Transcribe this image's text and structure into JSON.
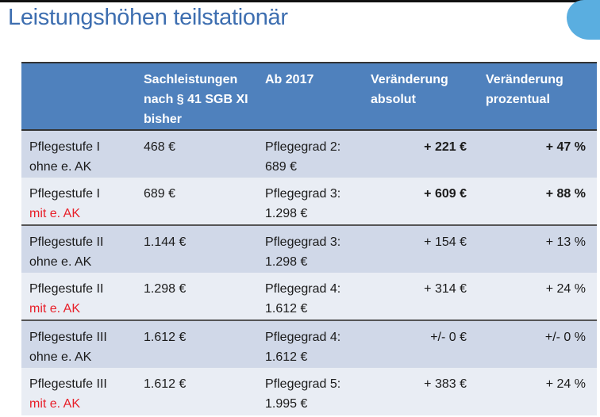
{
  "title": "Leistungshöhen teilstationär",
  "colors": {
    "header_bg": "#4f81bd",
    "title": "#3d6eb0",
    "highlight": "#e8202a"
  },
  "table": {
    "headers": [
      "",
      "Sachleistungen nach § 41 SGB XI bisher",
      "Ab 2017",
      "Veränderung absolut",
      "Veränderung prozentual"
    ],
    "rows": [
      {
        "stufe": "Pflegestufe I",
        "ak": "ohne e. AK",
        "ak_red": false,
        "bisher": "468 €",
        "grad": "Pflegegrad 2:",
        "neu": "689 €",
        "abs": "+ 221 €",
        "pct": "+ 47 %",
        "bold": true
      },
      {
        "stufe": "Pflegestufe I",
        "ak": "mit e. AK",
        "ak_red": true,
        "bisher": "689 €",
        "grad": "Pflegegrad 3:",
        "neu": "1.298 €",
        "abs": "+ 609 €",
        "pct": "+ 88 %",
        "bold": true
      },
      {
        "stufe": "Pflegestufe II",
        "ak": "ohne e. AK",
        "ak_red": false,
        "bisher": "1.144 €",
        "grad": "Pflegegrad 3:",
        "neu": "1.298 €",
        "abs": "+ 154 €",
        "pct": "+ 13 %",
        "bold": false
      },
      {
        "stufe": "Pflegestufe II",
        "ak": "mit e. AK",
        "ak_red": true,
        "bisher": "1.298 €",
        "grad": "Pflegegrad 4:",
        "neu": "1.612 €",
        "abs": "+ 314 €",
        "pct": "+ 24 %",
        "bold": false
      },
      {
        "stufe": "Pflegestufe III",
        "ak": "ohne e. AK",
        "ak_red": false,
        "bisher": "1.612 €",
        "grad": "Pflegegrad 4:",
        "neu": "1.612 €",
        "abs": "+/- 0 €",
        "pct": "+/- 0 %",
        "bold": false
      },
      {
        "stufe": "Pflegestufe III",
        "ak": "mit e. AK",
        "ak_red": true,
        "bisher": "1.612 €",
        "grad": "Pflegegrad 5:",
        "neu": "1.995 €",
        "abs": "+ 383 €",
        "pct": "+ 24 %",
        "bold": false
      }
    ]
  }
}
